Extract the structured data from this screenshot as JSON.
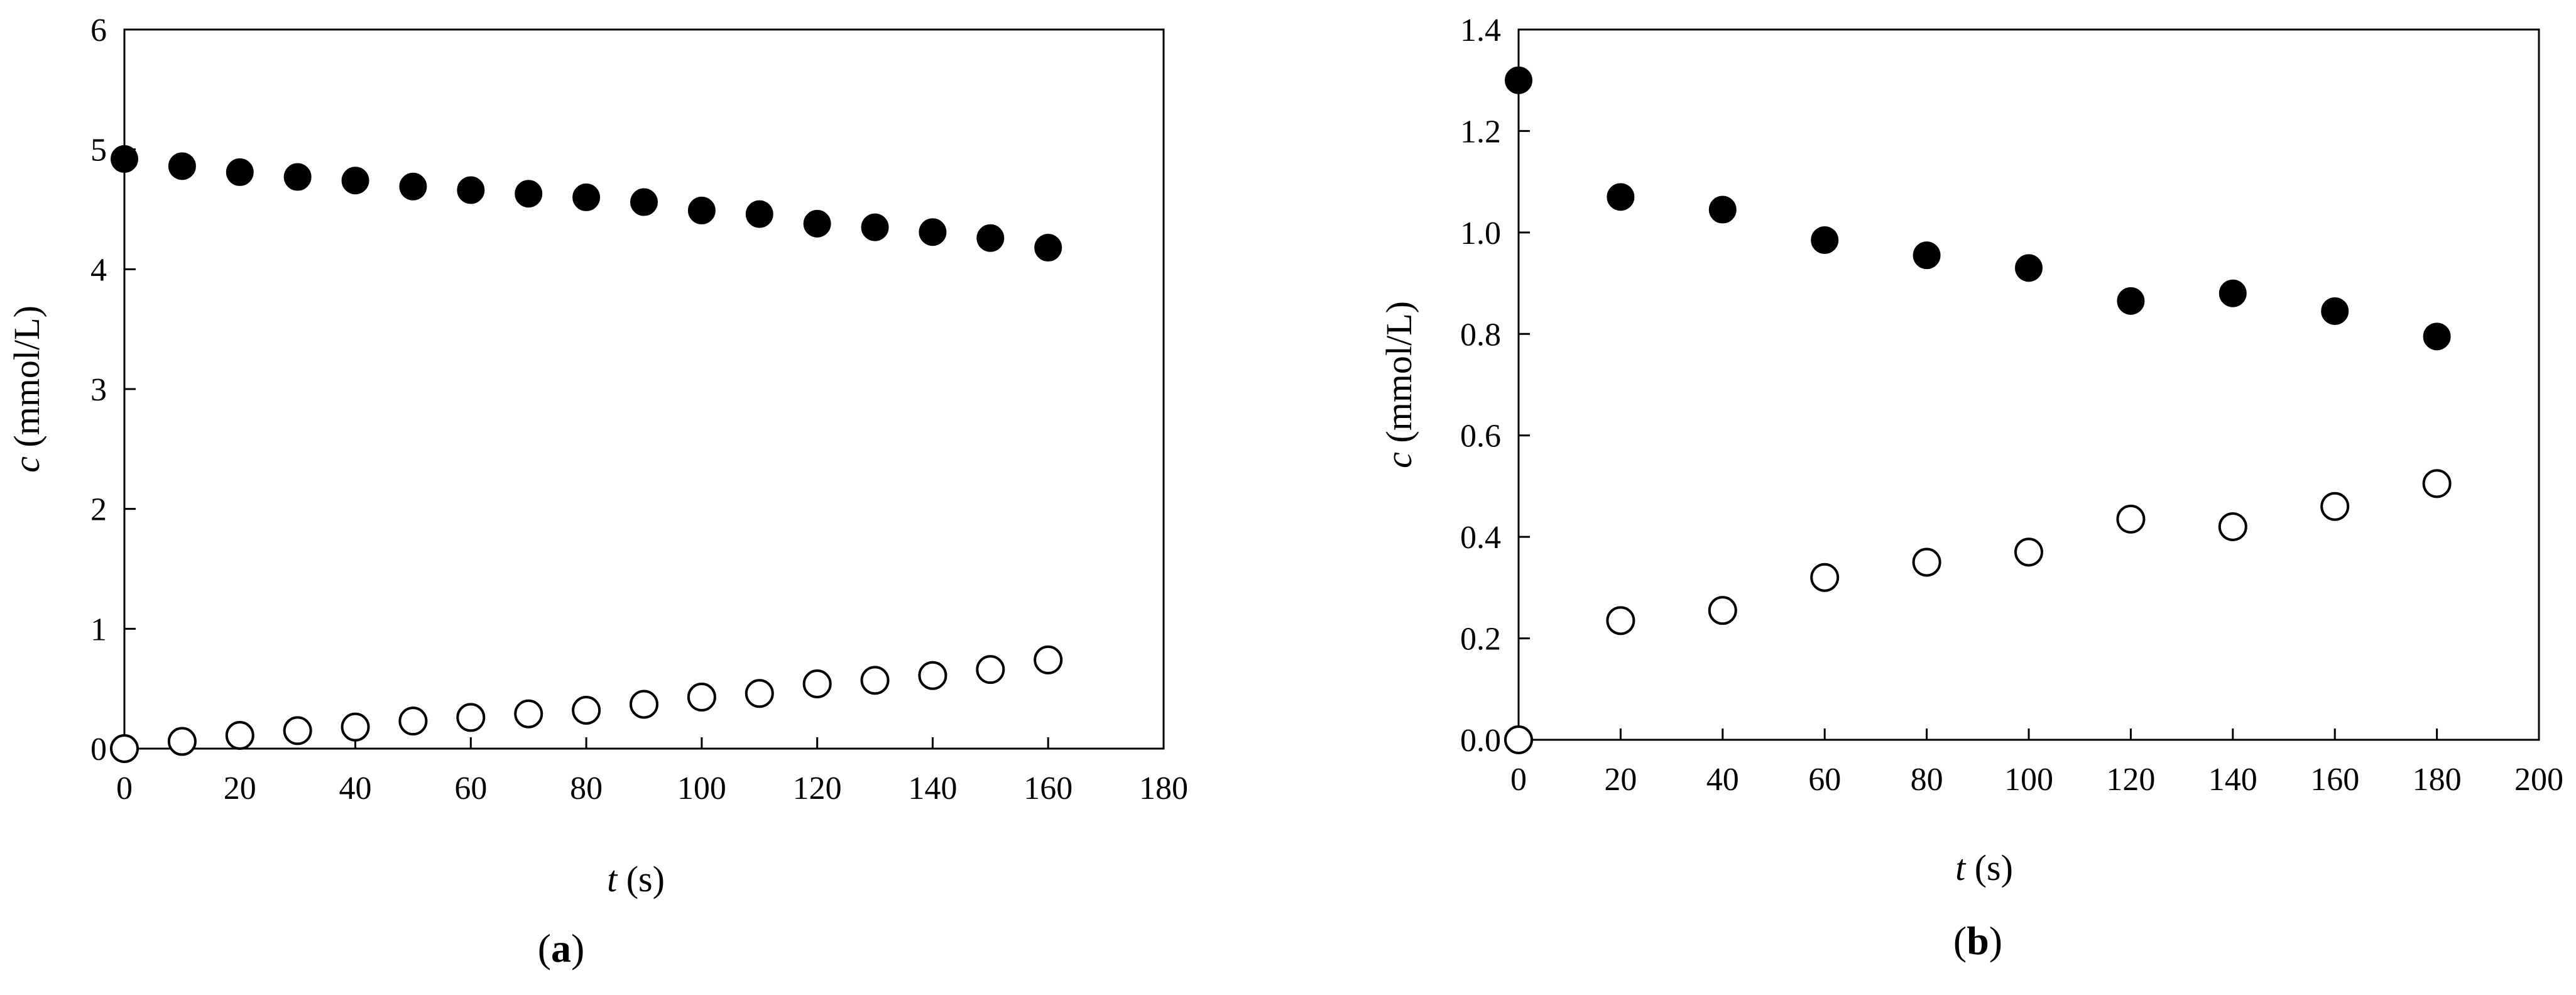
{
  "colors": {
    "filled": "#000000",
    "open": "#ffffff",
    "stroke": "#000000"
  },
  "charts": [
    {
      "panel_label_text": "a",
      "xlabel_var": "t",
      "xlabel_unit": " (s)",
      "ylabel_var": "c",
      "ylabel_unit": " (mmol/L)"
    },
    {
      "panel_label_text": "b",
      "xlabel_var": "t",
      "xlabel_unit": " (s)",
      "ylabel_var": "c",
      "ylabel_unit": " (mmol/L)"
    }
  ],
  "chart_data": [
    {
      "type": "scatter",
      "panel": "(a)",
      "xlabel": "t (s)",
      "ylabel": "c (mmol/L)",
      "xlim": [
        0,
        180
      ],
      "ylim": [
        0,
        6
      ],
      "xticks": [
        "0",
        "20",
        "40",
        "60",
        "80",
        "100",
        "120",
        "140",
        "160",
        "180"
      ],
      "yticks": [
        "0",
        "1",
        "2",
        "3",
        "4",
        "5",
        "6"
      ],
      "grid": false,
      "series": [
        {
          "marker": "filled-circle",
          "x": [
            0,
            10,
            20,
            30,
            40,
            50,
            60,
            70,
            80,
            90,
            100,
            110,
            120,
            130,
            140,
            150,
            160
          ],
          "y": [
            4.92,
            4.86,
            4.81,
            4.77,
            4.74,
            4.69,
            4.66,
            4.63,
            4.6,
            4.56,
            4.49,
            4.46,
            4.38,
            4.35,
            4.31,
            4.26,
            4.18
          ]
        },
        {
          "marker": "open-circle",
          "x": [
            0,
            10,
            20,
            30,
            40,
            50,
            60,
            70,
            80,
            90,
            100,
            110,
            120,
            130,
            140,
            150,
            160
          ],
          "y": [
            0.0,
            0.06,
            0.11,
            0.15,
            0.18,
            0.23,
            0.26,
            0.29,
            0.32,
            0.37,
            0.43,
            0.46,
            0.54,
            0.57,
            0.61,
            0.66,
            0.74
          ]
        }
      ]
    },
    {
      "type": "scatter",
      "panel": "(b)",
      "xlabel": "t (s)",
      "ylabel": "c (mmol/L)",
      "xlim": [
        0,
        200
      ],
      "ylim": [
        0,
        1.4
      ],
      "xticks": [
        "0",
        "20",
        "40",
        "60",
        "80",
        "100",
        "120",
        "140",
        "160",
        "180",
        "200"
      ],
      "yticks": [
        "0.0",
        "0.2",
        "0.4",
        "0.6",
        "0.8",
        "1.0",
        "1.2",
        "1.4"
      ],
      "grid": false,
      "series": [
        {
          "marker": "filled-circle",
          "x": [
            0,
            20,
            40,
            60,
            80,
            100,
            120,
            140,
            160,
            180
          ],
          "y": [
            1.3,
            1.07,
            1.045,
            0.985,
            0.955,
            0.93,
            0.865,
            0.88,
            0.845,
            0.795
          ]
        },
        {
          "marker": "open-circle",
          "x": [
            0,
            20,
            40,
            60,
            80,
            100,
            120,
            140,
            160,
            180
          ],
          "y": [
            0.0,
            0.235,
            0.255,
            0.32,
            0.35,
            0.37,
            0.435,
            0.42,
            0.46,
            0.505
          ]
        }
      ]
    }
  ]
}
